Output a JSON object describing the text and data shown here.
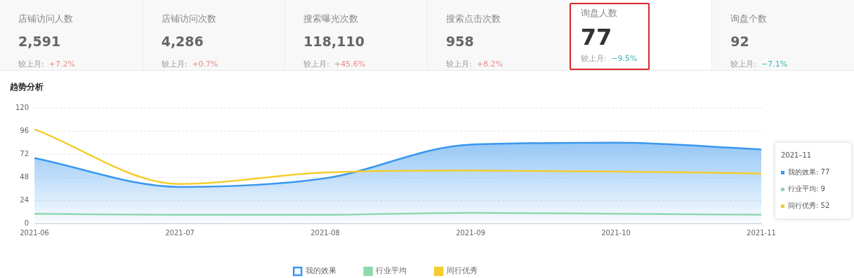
{
  "chart_data": [
    {
      "type": "other",
      "categories": [
        "店铺访问人数",
        "店铺访问次数",
        "搜索曝光次数",
        "搜索点击次数",
        "询盘人数",
        "询盘个数"
      ],
      "value_labels": [
        "2,591",
        "4,286",
        "118,110",
        "958",
        "77",
        "92"
      ],
      "annotations": [
        "较上月: +7.2%",
        "较上月: +0.7%",
        "较上月: +45.6%",
        "较上月: +8.2%",
        "较上月: −9.5%",
        "较上月: −7.1%"
      ]
    },
    {
      "type": "line",
      "title": "趋势分析",
      "categories": [
        "2021-06",
        "2021-07",
        "2021-08",
        "2021-09",
        "2021-10",
        "2021-11"
      ],
      "series": [
        {
          "name": "我的效果",
          "type": "area",
          "color": "#3a97ee",
          "values": [
            68,
            38,
            47,
            82,
            84,
            77
          ]
        },
        {
          "name": "行业平均",
          "type": "line",
          "color": "#8fd8ae",
          "values": [
            10,
            9,
            9,
            11,
            10,
            9
          ]
        },
        {
          "name": "同行优秀",
          "type": "line",
          "color": "#f5cd2f",
          "values": [
            98,
            41,
            53,
            55,
            54,
            52
          ]
        }
      ],
      "ylim": [
        0,
        120
      ],
      "yticks": [
        0,
        24,
        48,
        72,
        96,
        120
      ],
      "grid": "y",
      "legend": "bottom",
      "marker": "none",
      "annotations": [
        "2021–11",
        "我的效果: 77",
        "行业平均: 9",
        "同行优秀: 52"
      ]
    }
  ]
}
